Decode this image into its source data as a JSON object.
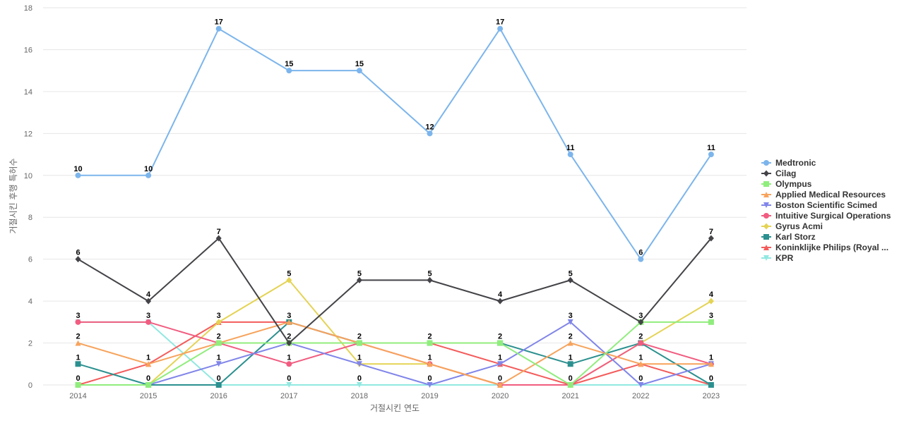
{
  "chart_data": {
    "type": "line",
    "title": "",
    "xlabel": "거절시킨 연도",
    "ylabel": "거절시킨 후행 특허수",
    "x": [
      "2014",
      "2015",
      "2016",
      "2017",
      "2018",
      "2019",
      "2020",
      "2021",
      "2022",
      "2023"
    ],
    "ylim": [
      0,
      18
    ],
    "yticks": [
      0,
      2,
      4,
      6,
      8,
      10,
      12,
      14,
      16,
      18
    ],
    "grid": true,
    "legend_position": "right",
    "series": [
      {
        "name": "Medtronic",
        "color": "#7cb5ec",
        "marker": "circle",
        "values": [
          10,
          10,
          17,
          15,
          15,
          12,
          17,
          11,
          6,
          11
        ]
      },
      {
        "name": "Cilag",
        "color": "#434348",
        "marker": "diamond",
        "values": [
          6,
          4,
          7,
          2,
          5,
          5,
          4,
          5,
          3,
          7
        ]
      },
      {
        "name": "Olympus",
        "color": "#90ed7d",
        "marker": "square",
        "values": [
          0,
          0,
          2,
          2,
          2,
          2,
          2,
          0,
          3,
          3
        ]
      },
      {
        "name": "Applied Medical Resources",
        "color": "#f7a35c",
        "marker": "triangle",
        "values": [
          2,
          1,
          2,
          3,
          2,
          1,
          0,
          2,
          1,
          1
        ]
      },
      {
        "name": "Boston Scientific Scimed",
        "color": "#8085e9",
        "marker": "triangle-down",
        "values": [
          0,
          0,
          1,
          2,
          1,
          0,
          1,
          3,
          0,
          1
        ]
      },
      {
        "name": "Intuitive Surgical Operations",
        "color": "#f15c80",
        "marker": "circle",
        "values": [
          3,
          3,
          2,
          1,
          2,
          1,
          0,
          0,
          2,
          1
        ]
      },
      {
        "name": "Gyrus Acmi",
        "color": "#e4d354",
        "marker": "diamond",
        "values": [
          0,
          0,
          3,
          5,
          1,
          1,
          0,
          0,
          2,
          4
        ]
      },
      {
        "name": "Karl Storz",
        "color": "#2b908f",
        "marker": "square",
        "values": [
          1,
          0,
          0,
          3,
          2,
          2,
          2,
          1,
          2,
          0
        ]
      },
      {
        "name": "Koninklijke Philips (Royal ...",
        "color": "#f45b5b",
        "marker": "triangle",
        "values": [
          0,
          1,
          3,
          3,
          2,
          2,
          1,
          0,
          1,
          0
        ]
      },
      {
        "name": "KPR",
        "color": "#91e8e1",
        "marker": "triangle-down",
        "values": [
          3,
          3,
          0,
          0,
          0,
          0,
          0,
          0,
          0,
          0
        ]
      }
    ],
    "data_labels": [
      {
        "x": "2014",
        "value": 10,
        "series": "Medtronic"
      },
      {
        "x": "2015",
        "value": 10,
        "series": "Medtronic"
      },
      {
        "x": "2016",
        "value": 17,
        "series": "Medtronic"
      },
      {
        "x": "2017",
        "value": 15,
        "series": "Medtronic"
      },
      {
        "x": "2018",
        "value": 15,
        "series": "Medtronic"
      },
      {
        "x": "2019",
        "value": 12,
        "series": "Medtronic"
      },
      {
        "x": "2020",
        "value": 17,
        "series": "Medtronic"
      },
      {
        "x": "2021",
        "value": 11,
        "series": "Medtronic"
      },
      {
        "x": "2022",
        "value": 6,
        "series": "Medtronic"
      },
      {
        "x": "2023",
        "value": 11,
        "series": "Medtronic"
      },
      {
        "x": "2014",
        "value": 6,
        "series": "Cilag"
      },
      {
        "x": "2015",
        "value": 4,
        "series": "Cilag"
      },
      {
        "x": "2016",
        "value": 7,
        "series": "Cilag"
      },
      {
        "x": "2017",
        "value": 5,
        "series": "Gyrus Acmi"
      },
      {
        "x": "2018",
        "value": 5,
        "series": "Cilag"
      },
      {
        "x": "2019",
        "value": 5,
        "series": "Cilag"
      },
      {
        "x": "2020",
        "value": 4,
        "series": "Cilag"
      },
      {
        "x": "2021",
        "value": 5,
        "series": "Cilag"
      },
      {
        "x": "2023",
        "value": 7,
        "series": "Cilag"
      },
      {
        "x": "2023",
        "value": 4,
        "series": "Gyrus Acmi"
      },
      {
        "x": "2014",
        "value": 3,
        "series": "KPR"
      },
      {
        "x": "2015",
        "value": 3,
        "series": "KPR"
      },
      {
        "x": "2016",
        "value": 3,
        "series": "Gyrus Acmi"
      },
      {
        "x": "2017",
        "value": 3,
        "series": "Karl Storz"
      },
      {
        "x": "2021",
        "value": 3,
        "series": "Boston Scientific Scimed"
      },
      {
        "x": "2022",
        "value": 3,
        "series": "Olympus"
      },
      {
        "x": "2023",
        "value": 3,
        "series": "Olympus"
      },
      {
        "x": "2014",
        "value": 2,
        "series": "Applied Medical Resources"
      },
      {
        "x": "2016",
        "value": 2,
        "series": "Olympus"
      },
      {
        "x": "2017",
        "value": 2,
        "series": "Cilag"
      },
      {
        "x": "2018",
        "value": 2,
        "series": "Olympus"
      },
      {
        "x": "2019",
        "value": 2,
        "series": "Olympus"
      },
      {
        "x": "2020",
        "value": 2,
        "series": "Olympus"
      },
      {
        "x": "2021",
        "value": 2,
        "series": "Applied Medical Resources"
      },
      {
        "x": "2022",
        "value": 2,
        "series": "Karl Storz"
      },
      {
        "x": "2014",
        "value": 1,
        "series": "Karl Storz"
      },
      {
        "x": "2015",
        "value": 1,
        "series": "Applied Medical Resources"
      },
      {
        "x": "2016",
        "value": 1,
        "series": "Boston Scientific Scimed"
      },
      {
        "x": "2017",
        "value": 1,
        "series": "Intuitive Surgical Operations"
      },
      {
        "x": "2018",
        "value": 1,
        "series": "Gyrus Acmi"
      },
      {
        "x": "2019",
        "value": 1,
        "series": "Applied Medical Resources"
      },
      {
        "x": "2020",
        "value": 1,
        "series": "Boston Scientific Scimed"
      },
      {
        "x": "2021",
        "value": 1,
        "series": "Karl Storz"
      },
      {
        "x": "2022",
        "value": 1,
        "series": "Applied Medical Resources"
      },
      {
        "x": "2023",
        "value": 1,
        "series": "Applied Medical Resources"
      },
      {
        "x": "2014",
        "value": 0,
        "series": "Koninklijke Philips (Royal ..."
      },
      {
        "x": "2015",
        "value": 0,
        "series": "Karl Storz"
      },
      {
        "x": "2016",
        "value": 0,
        "series": "KPR"
      },
      {
        "x": "2017",
        "value": 0,
        "series": "KPR"
      },
      {
        "x": "2018",
        "value": 0,
        "series": "KPR"
      },
      {
        "x": "2019",
        "value": 0,
        "series": "Boston Scientific Scimed"
      },
      {
        "x": "2020",
        "value": 0,
        "series": "Applied Medical Resources"
      },
      {
        "x": "2021",
        "value": 0,
        "series": "Olympus"
      },
      {
        "x": "2022",
        "value": 0,
        "series": "Boston Scientific Scimed"
      },
      {
        "x": "2023",
        "value": 0,
        "series": "Karl Storz"
      }
    ]
  }
}
